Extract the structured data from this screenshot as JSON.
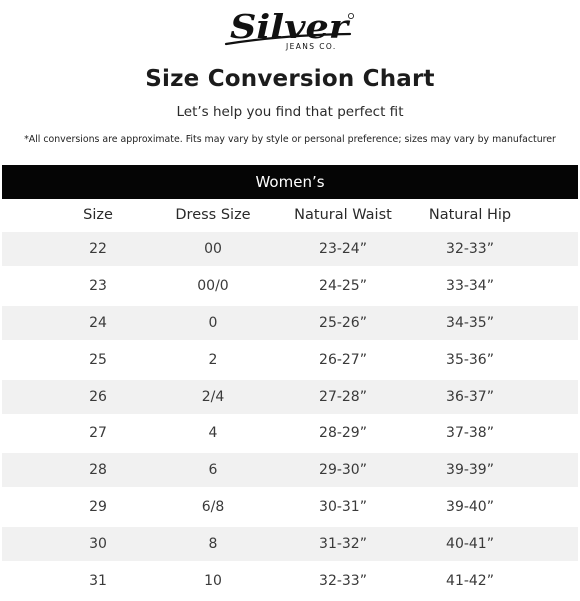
{
  "brand": {
    "logo_word": "Silver",
    "logo_tagline": "JEANS CO."
  },
  "header": {
    "title": "Size Conversion Chart",
    "subtitle": "Let’s help you find that perfect fit",
    "disclaimer": "*All conversions are approximate. Fits may vary by style or personal preference; sizes may vary by manufacturer"
  },
  "section": {
    "label": "Women’s"
  },
  "columns": [
    "Size",
    "Dress Size",
    "Natural Waist",
    "Natural Hip"
  ],
  "rows": [
    [
      "22",
      "00",
      "23-24”",
      "32-33”"
    ],
    [
      "23",
      "00/0",
      "24-25”",
      "33-34”"
    ],
    [
      "24",
      "0",
      "25-26”",
      "34-35”"
    ],
    [
      "25",
      "2",
      "26-27”",
      "35-36”"
    ],
    [
      "26",
      "2/4",
      "27-28”",
      "36-37”"
    ],
    [
      "27",
      "4",
      "28-29”",
      "37-38”"
    ],
    [
      "28",
      "6",
      "29-30”",
      "39-39”"
    ],
    [
      "29",
      "6/8",
      "30-31”",
      "39-40”"
    ],
    [
      "30",
      "8",
      "31-32”",
      "40-41”"
    ],
    [
      "31",
      "10",
      "32-33”",
      "41-42”"
    ]
  ],
  "colors": {
    "section_bar": "#050505",
    "row_stripe": "#f1f1f1",
    "text": "#1f1f1f"
  }
}
